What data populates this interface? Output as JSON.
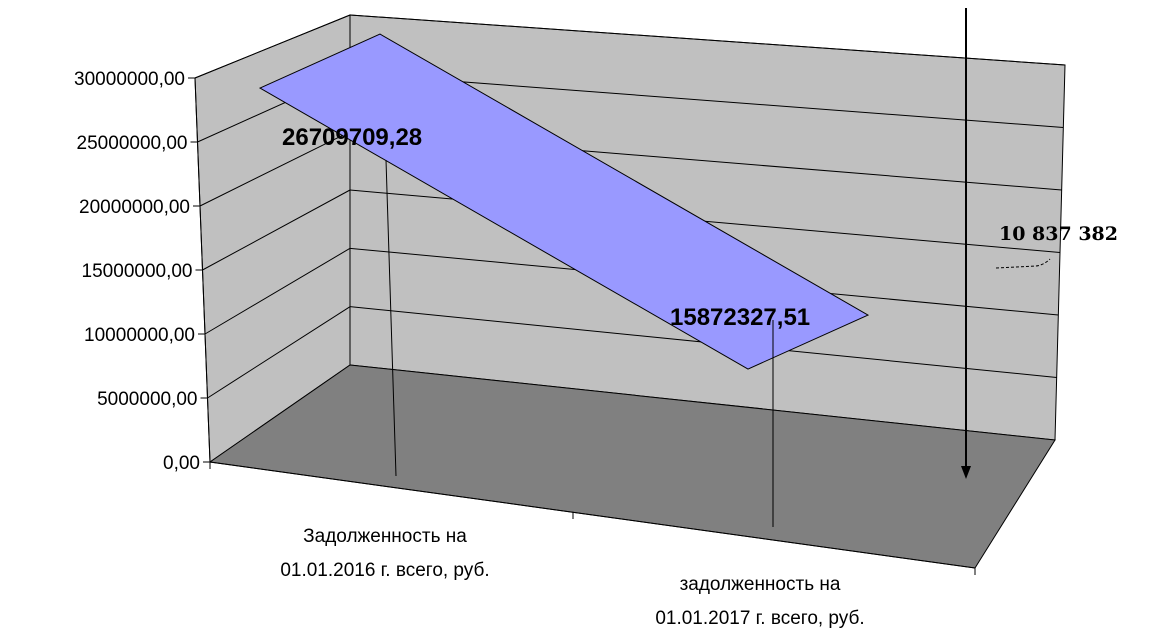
{
  "chart_data": {
    "type": "area",
    "style": "3d",
    "categories": [
      [
        "Задолженность на",
        "01.01.2016 г. всего, руб."
      ],
      [
        "задолженность на",
        "01.01.2017 г. всего, руб."
      ]
    ],
    "values": [
      26709709.28,
      15872327.51
    ],
    "value_labels": [
      "26709709,28",
      "15872327,51"
    ],
    "ylim": [
      0,
      30000000
    ],
    "yticks": [
      "0,00",
      "5000000,00",
      "10000000,00",
      "15000000,00",
      "20000000,00",
      "25000000,00",
      "30000000,00"
    ],
    "grid": true,
    "legend": "none",
    "annotation": {
      "text": "10 837 382",
      "value": 10837382
    },
    "colors": {
      "series_fill": "#9999ff",
      "back_wall": "#c0c0c0",
      "side_wall": "#c0c0c0",
      "floor": "#808080",
      "line": "#000000"
    }
  }
}
